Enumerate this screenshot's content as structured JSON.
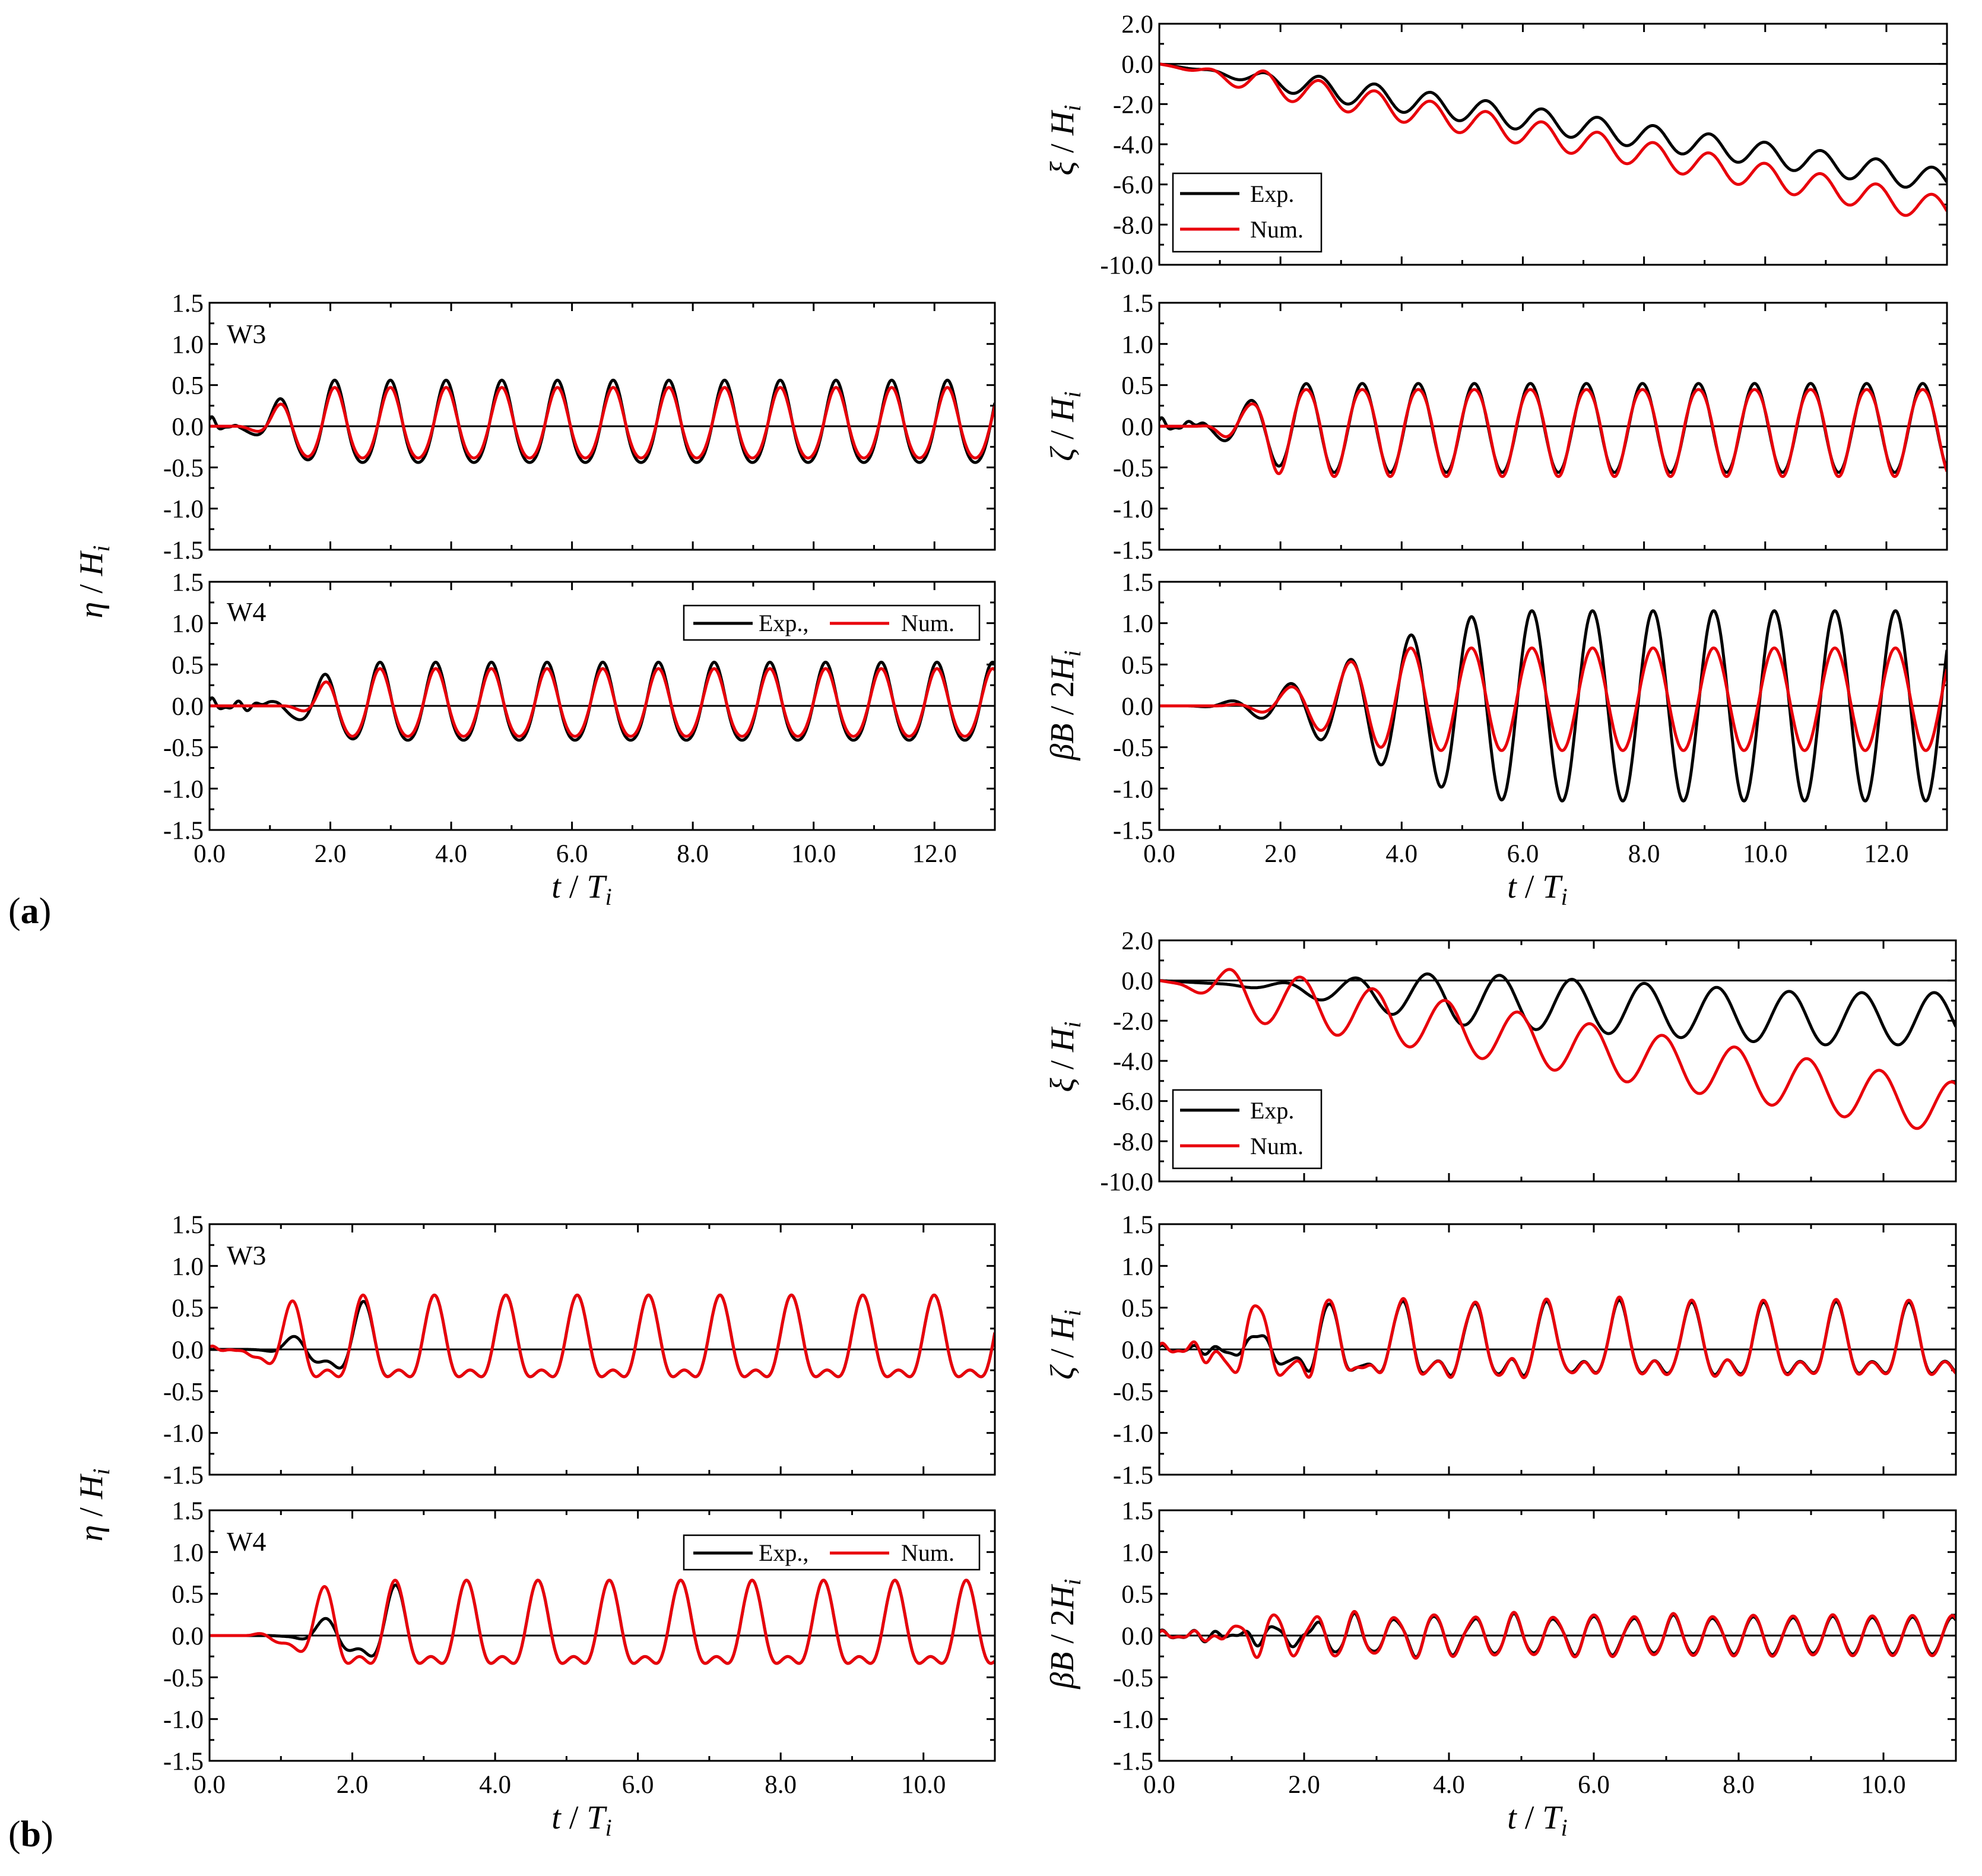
{
  "colors": {
    "exp": "#000000",
    "num": "#e8000b",
    "frame": "#000000"
  },
  "parts": [
    {
      "label_letter": "a",
      "xlabel": {
        "var": "t",
        "sep": " / ",
        "base": "T",
        "sub": "i"
      },
      "x_ticks": [
        "0.0",
        "2.0",
        "4.0",
        "6.0",
        "8.0",
        "10.0",
        "12.0"
      ],
      "y_ticks": [
        "1.5",
        "1.0",
        "0.5",
        "0.0",
        "-0.5",
        "-1.0",
        "-1.5"
      ],
      "xi_ticks": [
        "2.0",
        "0.0",
        "-2.0",
        "-4.0",
        "-6.0",
        "-8.0",
        "-10.0"
      ],
      "eta_ylabel": {
        "base": "η",
        "sep": " / ",
        "den": "H",
        "sub": "i"
      },
      "xi_ylabel": {
        "base": "ξ",
        "sep": " / ",
        "den": "H",
        "sub": "i"
      },
      "zeta_ylabel": {
        "base": "ζ",
        "sep": " / ",
        "den": "H",
        "sub": "i"
      },
      "beta_ylabel": {
        "base": "βB",
        "sep": " / 2",
        "den": "H",
        "sub": "i"
      },
      "w3_label": "W3",
      "w4_label": "W4",
      "legend_inline": {
        "exp": "Exp.,",
        "num": "Num."
      },
      "legend_xi": {
        "exp": "Exp.",
        "num": "Num."
      }
    },
    {
      "label_letter": "b",
      "xlabel": {
        "var": "t",
        "sep": " / ",
        "base": "T",
        "sub": "i"
      },
      "x_ticks": [
        "0.0",
        "2.0",
        "4.0",
        "6.0",
        "8.0",
        "10.0"
      ],
      "y_ticks": [
        "1.5",
        "1.0",
        "0.5",
        "0.0",
        "-0.5",
        "-1.0",
        "-1.5"
      ],
      "xi_ticks": [
        "2.0",
        "0.0",
        "-2.0",
        "-4.0",
        "-6.0",
        "-8.0",
        "-10.0"
      ],
      "eta_ylabel": {
        "base": "η",
        "sep": " / ",
        "den": "H",
        "sub": "i"
      },
      "xi_ylabel": {
        "base": "ξ",
        "sep": " / ",
        "den": "H",
        "sub": "i"
      },
      "zeta_ylabel": {
        "base": "ζ",
        "sep": " / ",
        "den": "H",
        "sub": "i"
      },
      "beta_ylabel": {
        "base": "βB",
        "sep": " / 2",
        "den": "H",
        "sub": "i"
      },
      "w3_label": "W3",
      "w4_label": "W4",
      "legend_inline": {
        "exp": "Exp.,",
        "num": "Num."
      },
      "legend_xi": {
        "exp": "Exp.",
        "num": "Num."
      }
    }
  ],
  "chart_data": [
    {
      "id": "a-eta-W3",
      "type": "line",
      "panel_label": "W3",
      "xlim": [
        0,
        13
      ],
      "ylim": [
        -1.5,
        1.5
      ],
      "xlabel": "t / Ti",
      "ylabel": "η / Hi",
      "series": [
        {
          "name": "Exp.",
          "model": "wave",
          "period": 0.922,
          "phase": 1.15,
          "ramp": [
            0.2,
            1.9
          ],
          "amp": 0.53,
          "skew": 0.12,
          "offset": 0.0,
          "drift": 0.0,
          "noise": 0.15,
          "noise_span": 0.5
        },
        {
          "name": "Num.",
          "model": "wave",
          "period": 0.922,
          "phase": 1.15,
          "ramp": [
            0.4,
            1.8
          ],
          "amp": 0.45,
          "skew": 0.1,
          "offset": 0.0,
          "drift": 0.0
        }
      ]
    },
    {
      "id": "a-eta-W4",
      "type": "line",
      "panel_label": "W4",
      "xlim": [
        0,
        13
      ],
      "ylim": [
        -1.5,
        1.5
      ],
      "xlabel": "t / Ti",
      "ylabel": "η / Hi",
      "series": [
        {
          "name": "Exp.",
          "model": "wave",
          "period": 0.922,
          "phase": 1.9,
          "ramp": [
            0.6,
            2.6
          ],
          "amp": 0.5,
          "skew": 0.12,
          "offset": 0.0,
          "drift": 0.0,
          "noise": 0.12,
          "noise_span": 1.2
        },
        {
          "name": "Num.",
          "model": "wave",
          "period": 0.922,
          "phase": 1.9,
          "ramp": [
            1.2,
            2.4
          ],
          "amp": 0.43,
          "skew": 0.1,
          "offset": 0.0,
          "drift": 0.0
        }
      ]
    },
    {
      "id": "a-xi",
      "type": "line",
      "xlim": [
        0,
        13
      ],
      "ylim": [
        -10,
        2
      ],
      "xlabel": "t / Ti",
      "ylabel": "ξ / Hi",
      "series": [
        {
          "name": "Exp.",
          "model": "wave",
          "period": 0.92,
          "phase": 0.8,
          "ramp": [
            0.2,
            3.0
          ],
          "amp": 0.6,
          "skew": 0.0,
          "offset": 0.0,
          "drift": -0.45
        },
        {
          "name": "Num.",
          "model": "wave",
          "period": 0.92,
          "phase": 0.8,
          "ramp": [
            0.1,
            2.0
          ],
          "amp": 0.65,
          "skew": 0.0,
          "offset": 0.0,
          "drift": -0.56
        }
      ]
    },
    {
      "id": "a-zeta",
      "type": "line",
      "xlim": [
        0,
        13
      ],
      "ylim": [
        -1.5,
        1.5
      ],
      "xlabel": "t / Ti",
      "ylabel": "ζ / Hi",
      "series": [
        {
          "name": "Exp.",
          "model": "wave",
          "period": 0.925,
          "phase": 1.5,
          "ramp": [
            0.2,
            2.5
          ],
          "amp": 0.54,
          "skew": 0.0,
          "offset": -0.02,
          "drift": 0.0,
          "noise": 0.13,
          "noise_span": 0.8
        },
        {
          "name": "Num.",
          "model": "wave",
          "period": 0.925,
          "phase": 1.5,
          "ramp": [
            0.6,
            2.2
          ],
          "amp": 0.55,
          "skew": -0.08,
          "offset": -0.04,
          "drift": 0.0
        }
      ]
    },
    {
      "id": "a-beta",
      "type": "line",
      "xlim": [
        0,
        13
      ],
      "ylim": [
        -1.5,
        1.5
      ],
      "xlabel": "t / Ti",
      "ylabel": "βB / 2Hi",
      "series": [
        {
          "name": "Exp.",
          "model": "wave",
          "period": 1.0,
          "phase": 1.15,
          "ramp": [
            0.4,
            6.0
          ],
          "amp": 1.15,
          "skew": 0.0,
          "offset": 0.0,
          "drift": 0.0
        },
        {
          "name": "Num.",
          "model": "wave",
          "period": 1.0,
          "phase": 1.15,
          "ramp": [
            0.9,
            4.2
          ],
          "amp": 0.62,
          "skew": 0.0,
          "offset": 0.08,
          "drift": 0.0
        }
      ]
    },
    {
      "id": "b-eta-W3",
      "type": "line",
      "panel_label": "W3",
      "xlim": [
        0,
        11
      ],
      "ylim": [
        -1.5,
        1.5
      ],
      "xlabel": "t / Ti",
      "ylabel": "η / Hi",
      "series": [
        {
          "name": "Exp.",
          "model": "wave",
          "period": 1.0,
          "phase": 1.15,
          "ramp": [
            0.5,
            2.6
          ],
          "amp": 0.55,
          "skew": 0.45,
          "offset": 0.0,
          "drift": 0.0
        },
        {
          "name": "Num.",
          "model": "wave",
          "period": 1.0,
          "phase": 1.15,
          "ramp": [
            0.2,
            1.4
          ],
          "amp": 0.55,
          "skew": 0.45,
          "offset": 0.0,
          "drift": 0.0,
          "noise": 0.05,
          "noise_span": 1.0
        }
      ]
    },
    {
      "id": "b-eta-W4",
      "type": "line",
      "panel_label": "W4",
      "xlim": [
        0,
        11
      ],
      "ylim": [
        -1.5,
        1.5
      ],
      "xlabel": "t / Ti",
      "ylabel": "η / Hi",
      "series": [
        {
          "name": "Exp.",
          "model": "wave",
          "period": 1.0,
          "phase": 1.6,
          "ramp": [
            0.8,
            3.0
          ],
          "amp": 0.56,
          "skew": 0.45,
          "offset": 0.0,
          "drift": 0.0
        },
        {
          "name": "Num.",
          "model": "wave",
          "period": 1.0,
          "phase": 1.6,
          "ramp": [
            0.5,
            1.9
          ],
          "amp": 0.56,
          "skew": 0.45,
          "offset": 0.0,
          "drift": 0.0
        }
      ]
    },
    {
      "id": "b-xi",
      "type": "line",
      "xlim": [
        0,
        11
      ],
      "ylim": [
        -10,
        2
      ],
      "xlabel": "t / Ti",
      "ylabel": "ξ / Hi",
      "series": [
        {
          "name": "Exp.",
          "model": "wave",
          "period": 1.0,
          "phase": 0.7,
          "ramp": [
            0.6,
            4.5
          ],
          "amp": 1.3,
          "skew": 0.0,
          "offset": -0.1,
          "drift": -0.2,
          "drift_cap": -1.8
        },
        {
          "name": "Num.",
          "model": "wave",
          "period": 1.0,
          "phase": 0.95,
          "ramp": [
            0.2,
            1.2
          ],
          "amp": 1.3,
          "skew": 0.0,
          "offset": 0.0,
          "drift": -0.58
        }
      ]
    },
    {
      "id": "b-zeta",
      "type": "line",
      "xlim": [
        0,
        11
      ],
      "ylim": [
        -1.5,
        1.5
      ],
      "xlabel": "t / Ti",
      "ylabel": "ζ / Hi",
      "series": [
        {
          "name": "Exp.",
          "model": "wave",
          "period": 1.0,
          "phase": 1.35,
          "ramp": [
            0.5,
            2.6
          ],
          "amp": 0.46,
          "skew": 0.6,
          "offset": 0.0,
          "drift": 0.0,
          "noise": 0.06,
          "noise_span": 11.0
        },
        {
          "name": "Num.",
          "model": "wave",
          "period": 1.0,
          "phase": 1.35,
          "ramp": [
            0.3,
            1.3
          ],
          "amp": 0.48,
          "skew": 0.6,
          "offset": 0.0,
          "drift": 0.0,
          "noise": 0.09,
          "noise_span": 11.0
        }
      ]
    },
    {
      "id": "b-beta",
      "type": "line",
      "xlim": [
        0,
        11
      ],
      "ylim": [
        -1.5,
        1.5
      ],
      "xlabel": "t / Ti",
      "ylabel": "βB / 2Hi",
      "series": [
        {
          "name": "Exp.",
          "model": "wave",
          "period": 0.55,
          "phase": 0.5,
          "ramp": [
            0.5,
            3.0
          ],
          "amp": 0.22,
          "skew": 0.0,
          "offset": 0.0,
          "drift": 0.0,
          "noise": 0.08,
          "noise_span": 11.0
        },
        {
          "name": "Num.",
          "model": "wave",
          "period": 0.55,
          "phase": 0.5,
          "ramp": [
            0.4,
            1.6
          ],
          "amp": 0.24,
          "skew": 0.0,
          "offset": 0.0,
          "drift": 0.0,
          "noise": 0.07,
          "noise_span": 11.0
        }
      ]
    }
  ]
}
